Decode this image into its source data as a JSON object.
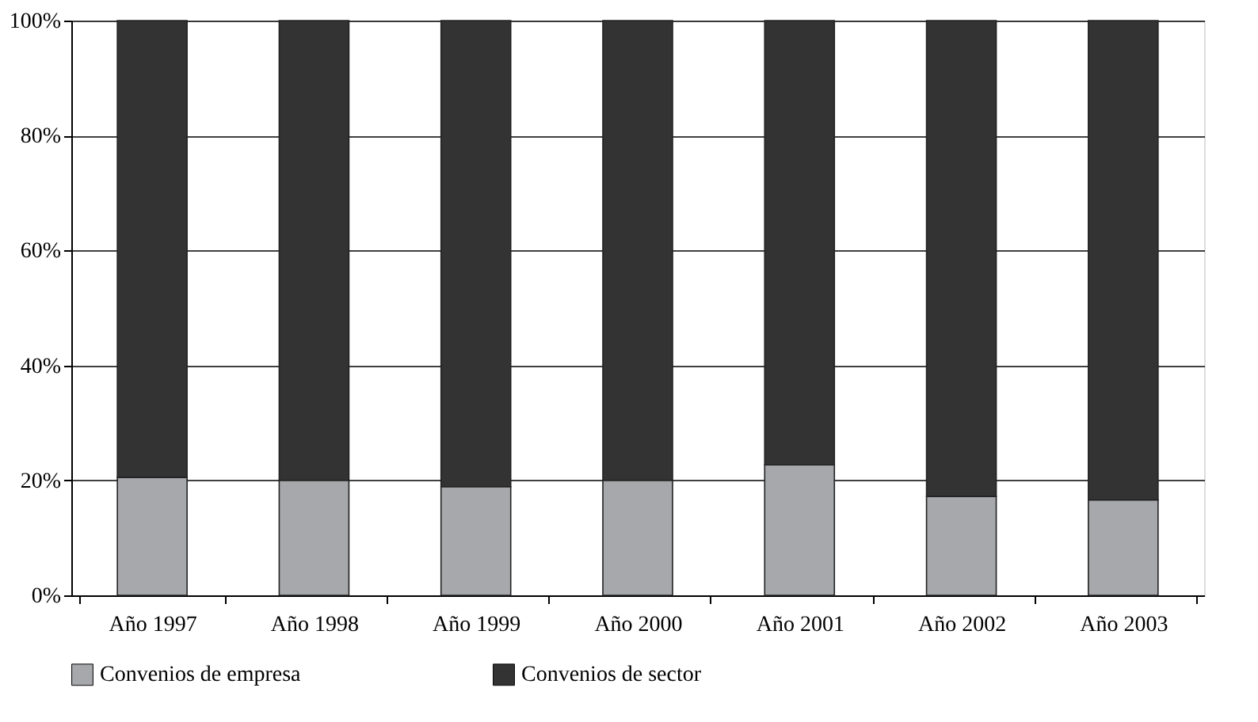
{
  "chart_data": {
    "type": "bar",
    "stacked": true,
    "categories": [
      "Año 1997",
      "Año 1998",
      "Año 1999",
      "Año 2000",
      "Año 2001",
      "Año 2002",
      "Año 2003"
    ],
    "series": [
      {
        "name": "Convenios de empresa",
        "color": "#a7a8ab",
        "values": [
          20.5,
          20.0,
          18.9,
          20.0,
          22.7,
          17.2,
          16.6
        ]
      },
      {
        "name": "Convenios de sector",
        "color": "#333333",
        "values": [
          79.5,
          80.0,
          81.1,
          80.0,
          77.3,
          82.8,
          83.4
        ]
      }
    ],
    "ylim": [
      0,
      100
    ],
    "yticks": [
      {
        "value": 0,
        "label": "0%"
      },
      {
        "value": 20,
        "label": "20%"
      },
      {
        "value": 40,
        "label": "40%"
      },
      {
        "value": 60,
        "label": "60%"
      },
      {
        "value": 80,
        "label": "80%"
      },
      {
        "value": 100,
        "label": "100%"
      }
    ],
    "grid": "y",
    "legend": "bottom"
  }
}
